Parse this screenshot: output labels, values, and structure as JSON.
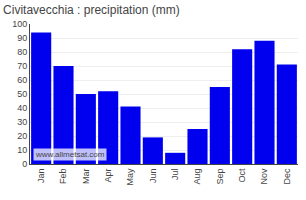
{
  "chart_data": {
    "type": "bar",
    "title": "Civitavecchia : precipitation (mm)",
    "categories": [
      "Jan",
      "Feb",
      "Mar",
      "Apr",
      "May",
      "Jun",
      "Jul",
      "Aug",
      "Sep",
      "Oct",
      "Nov",
      "Dec"
    ],
    "values": [
      94,
      70,
      50,
      52,
      41,
      19,
      8,
      25,
      55,
      82,
      88,
      71
    ],
    "color": "#0000ee",
    "ylim": [
      0,
      100
    ],
    "yticks": [
      0,
      10,
      20,
      30,
      40,
      50,
      60,
      70,
      80,
      90,
      100
    ],
    "grid": true,
    "annotations": [
      "www.allmetsat.com"
    ]
  }
}
